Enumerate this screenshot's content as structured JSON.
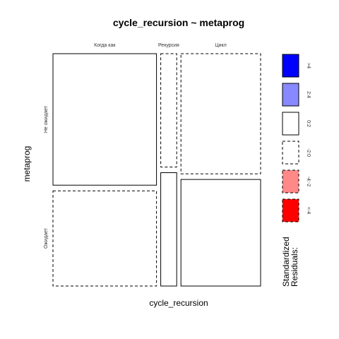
{
  "chart_data": {
    "type": "mosaic",
    "title": "cycle_recursion ~ metaprog",
    "xlabel": "cycle_recursion",
    "ylabel": "metaprog",
    "x_categories": [
      "Когда как",
      "Рекурсия",
      "Цикл"
    ],
    "y_categories": [
      "Не ожидает",
      "Ожидает"
    ],
    "x_proportions": [
      0.52,
      0.08,
      0.4
    ],
    "cells": [
      {
        "x": "Когда как",
        "y": "Не ожидает",
        "share": 0.58,
        "residual_class": "0:2"
      },
      {
        "x": "Когда как",
        "y": "Ожидает",
        "share": 0.42,
        "residual_class": "-2:0"
      },
      {
        "x": "Рекурсия",
        "y": "Не ожидает",
        "share": 0.5,
        "residual_class": "-2:0"
      },
      {
        "x": "Рекурсия",
        "y": "Ожидает",
        "share": 0.5,
        "residual_class": "0:2"
      },
      {
        "x": "Цикл",
        "y": "Не ожидает",
        "share": 0.53,
        "residual_class": "-2:0"
      },
      {
        "x": "Цикл",
        "y": "Ожидает",
        "share": 0.47,
        "residual_class": "0:2"
      }
    ],
    "legend": {
      "title_lines": [
        "Standardized",
        "Residuals:"
      ],
      "placement": "right",
      "entries": [
        {
          "label": ">4",
          "color": "#0000ff",
          "dashed": false
        },
        {
          "label": "2:4",
          "color": "#8888ff",
          "dashed": false
        },
        {
          "label": "0:2",
          "color": "#ffffff",
          "dashed": false
        },
        {
          "label": "-2:0",
          "color": "#ffffff",
          "dashed": true
        },
        {
          "label": "-4:-2",
          "color": "#ff8888",
          "dashed": true
        },
        {
          "label": "<-4",
          "color": "#ff0000",
          "dashed": true
        }
      ]
    }
  }
}
